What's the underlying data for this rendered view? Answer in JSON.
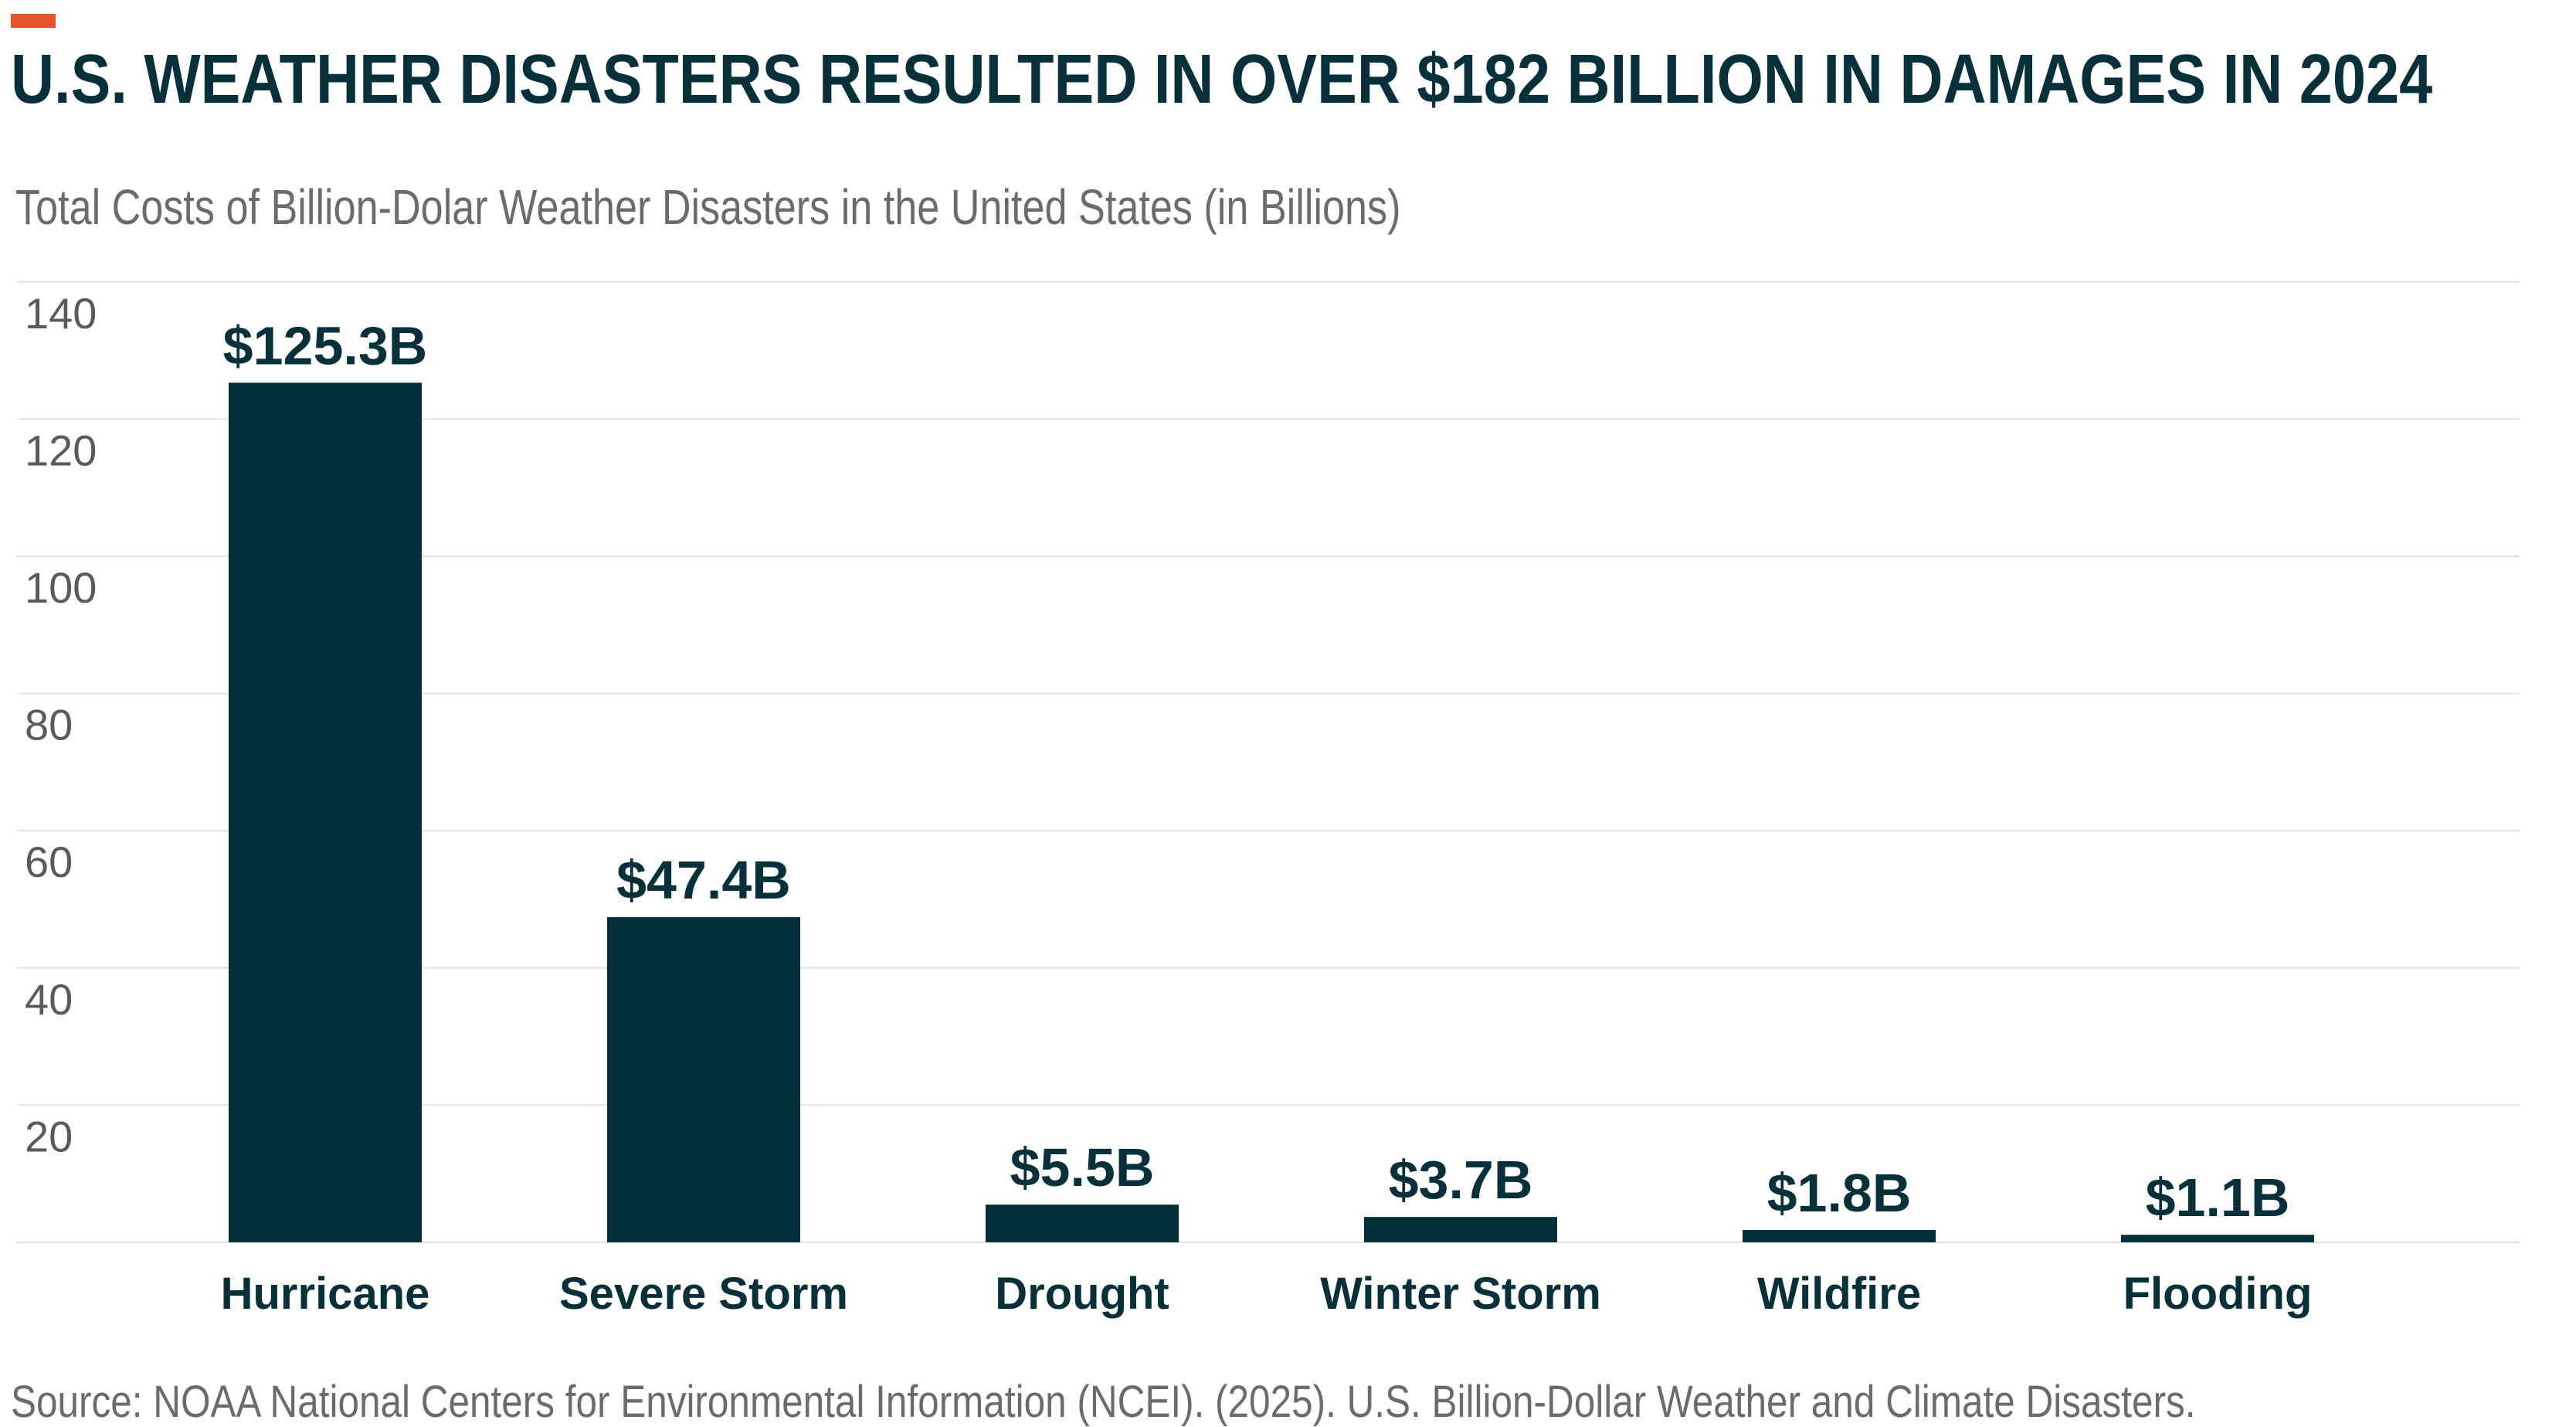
{
  "title": "U.S. WEATHER DISASTERS RESULTED IN OVER $182 BILLION IN DAMAGES IN 2024",
  "source": "Source: NOAA National Centers for Environmental Information (NCEI). (2025). U.S. Billion-Dollar Weather and Climate Disasters.",
  "colors": {
    "accent": "#e8542b",
    "bar": "#02303a",
    "text": "#06303a",
    "grid": "#e2e2e2"
  },
  "chart_data": {
    "type": "bar",
    "title": "Total Costs of Billion-Dolar Weather Disasters in the United States (in Billions)",
    "xlabel": "",
    "ylabel": "",
    "categories": [
      "Hurricane",
      "Severe Storm",
      "Drought",
      "Winter Storm",
      "Wildfire",
      "Flooding"
    ],
    "values": [
      125.3,
      47.4,
      5.5,
      3.7,
      1.8,
      1.1
    ],
    "data_labels": [
      "$125.3B",
      "$47.4B",
      "$5.5B",
      "$3.7B",
      "$1.8B",
      "$1.1B"
    ],
    "ylim": [
      0,
      140
    ],
    "yticks": [
      20,
      40,
      60,
      80,
      100,
      120,
      140
    ],
    "grid": true,
    "legend": "none"
  }
}
